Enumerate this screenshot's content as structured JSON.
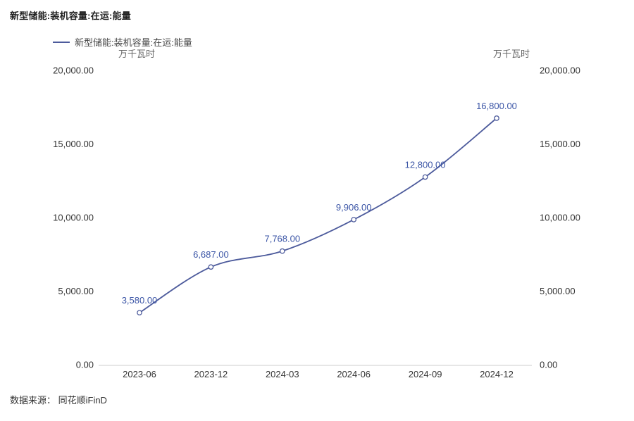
{
  "header": {
    "title": "新型储能:装机容量:在运:能量"
  },
  "legend": {
    "items": [
      {
        "label": "新型储能:装机容量:在运:能量"
      }
    ]
  },
  "axes": {
    "unit_left": "万千瓦时",
    "unit_right": "万千瓦时"
  },
  "footer": {
    "source": "数据来源： 同花顺iFinD"
  },
  "chart_data": {
    "type": "line",
    "title": "新型储能:装机容量:在运:能量",
    "smooth": true,
    "grid": false,
    "legend_position": "top-left",
    "categories": [
      "2023-06",
      "2023-12",
      "2024-03",
      "2024-06",
      "2024-09",
      "2024-12"
    ],
    "series": [
      {
        "name": "新型储能:装机容量:在运:能量",
        "values": [
          3580,
          6687,
          7768,
          9906,
          12800,
          16800
        ]
      }
    ],
    "data_labels": [
      "3,580.00",
      "6,687.00",
      "7,768.00",
      "9,906.00",
      "12,800.00",
      "16,800.00"
    ],
    "ylim": [
      0,
      20000
    ],
    "yticks": [
      0,
      5000,
      10000,
      15000,
      20000
    ],
    "ytick_labels": [
      "0.00",
      "5,000.00",
      "10,000.00",
      "15,000.00",
      "20,000.00"
    ],
    "ylabel_left": "万千瓦时",
    "ylabel_right": "万千瓦时",
    "line_color": "#4d5b9c",
    "label_color": "#3b55a6",
    "axis_line_color": "#cccccc",
    "tick_text_color": "#333333"
  }
}
